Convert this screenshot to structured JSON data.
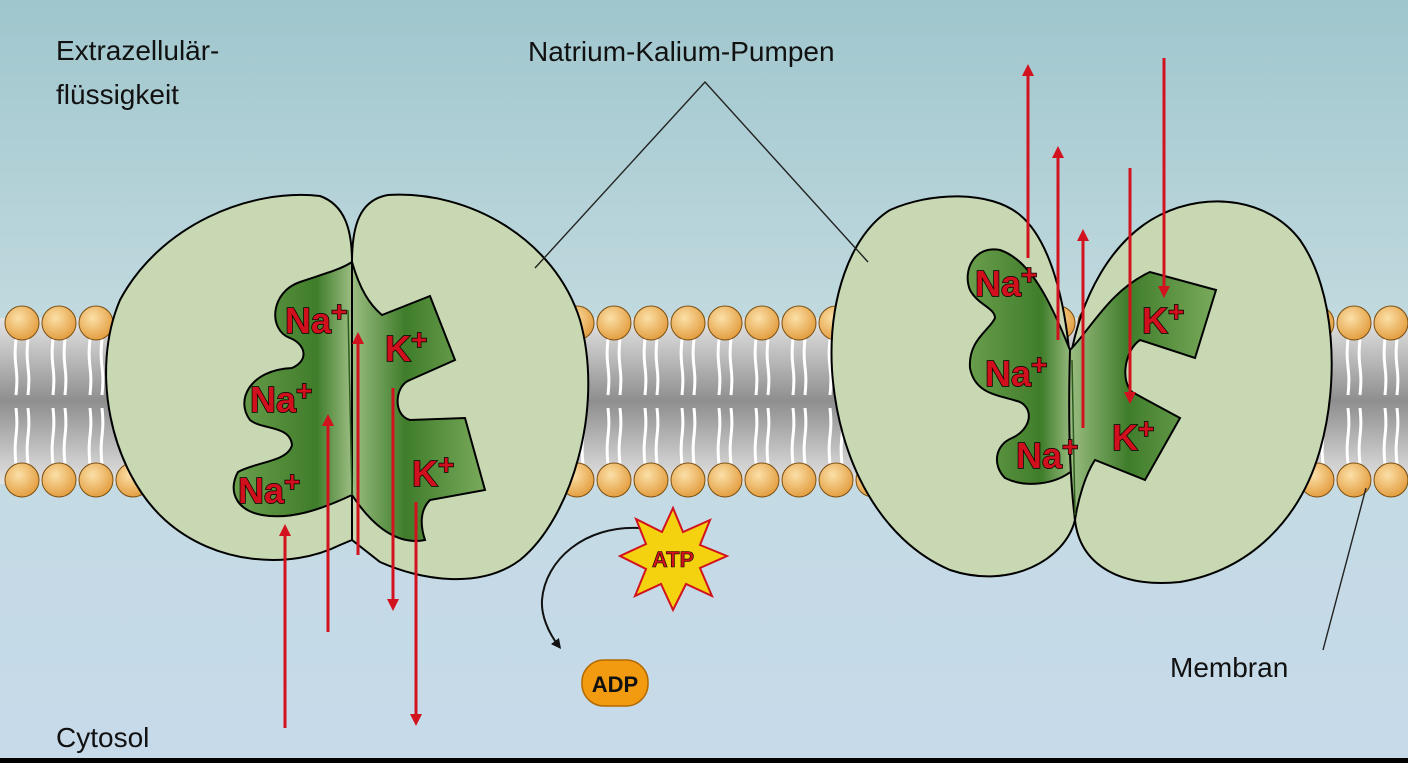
{
  "labels": {
    "extracellular_line1": "Extrazellulär-",
    "extracellular_line2": "flüssigkeit",
    "pumps_title": "Natrium-Kalium-Pumpen",
    "cytosol": "Cytosol",
    "membrane": "Membran"
  },
  "ions": {
    "sodium": "Na",
    "potassium": "K",
    "charge": "+"
  },
  "molecules": {
    "atp": "ATP",
    "adp": "ADP"
  },
  "colors": {
    "background_top": "#9fc8cf",
    "background_bottom": "#c9dcea",
    "protein_light": "#c7d8b2",
    "protein_dark": "#4d8a35",
    "ion_text": "#d0101c",
    "arrow": "#d2121e",
    "lipid_head": "#f0b45a",
    "atp_burst": "#f5d20f",
    "adp_pill": "#f39b10"
  },
  "icons": {
    "atp": "starburst-icon",
    "adp": "pill-icon",
    "transport": "arrow-icon"
  }
}
